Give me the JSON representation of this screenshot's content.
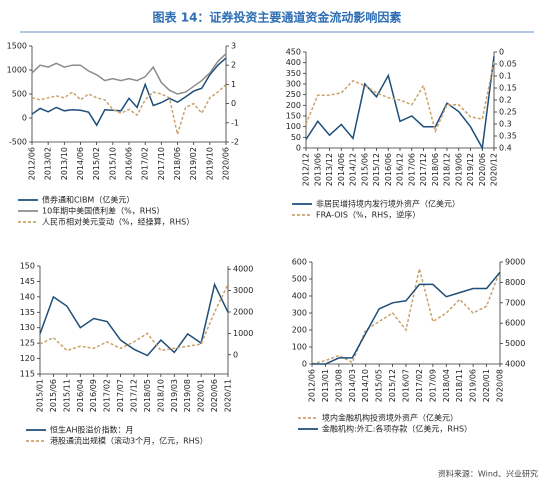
{
  "title": "图表 14：证券投资主要通道资金流动影响因素",
  "source": "资料来源：Wind、兴业研究",
  "chart_data": [
    {
      "type": "line",
      "categories": [
        "2012/06",
        null,
        "2013/02",
        null,
        "2013/10",
        null,
        "2014/06",
        null,
        "2015/02",
        null,
        "2015/10",
        null,
        "2016/06",
        null,
        "2017/02",
        null,
        "2017/10",
        null,
        "2018/06",
        null,
        "2019/02",
        null,
        "2019/10",
        null,
        "2020/06"
      ],
      "ylim": [
        -500,
        1500
      ],
      "yticks": [
        -500,
        0,
        500,
        1000,
        1500
      ],
      "y2lim": [
        -2,
        3
      ],
      "y2ticks": [
        -2,
        -1,
        0,
        1,
        2,
        3
      ],
      "series": [
        {
          "name": "债券通和CIBM（亿美元）",
          "color": "#1f4e79",
          "line_style": "solid",
          "values": [
            80,
            200,
            130,
            220,
            150,
            170,
            160,
            120,
            -150,
            170,
            160,
            150,
            410,
            220,
            700,
            260,
            320,
            410,
            330,
            440,
            560,
            620,
            900,
            1100,
            1250
          ]
        },
        {
          "name": "10年期中美国债利差（%，RHS）",
          "color": "#8c8c8c",
          "line_style": "solid",
          "axis": "y2",
          "values": [
            1.6,
            2.0,
            1.9,
            2.1,
            1.9,
            2.0,
            2.0,
            1.7,
            1.5,
            1.2,
            1.3,
            1.2,
            1.3,
            1.2,
            1.4,
            1.9,
            1.1,
            0.7,
            0.5,
            0.6,
            0.9,
            1.2,
            1.6,
            2.2,
            2.6
          ]
        },
        {
          "name": "人民币相对美元变动（%，经操算，RHS）",
          "color": "#c9a26b",
          "line_style": "dashed",
          "axis": "y2",
          "values": [
            0.3,
            0.2,
            0.3,
            0.4,
            0.3,
            0.6,
            0.2,
            0.5,
            0.3,
            0.2,
            -0.3,
            -0.5,
            -0.3,
            -0.6,
            0.2,
            0.6,
            0.5,
            0.3,
            -1.6,
            -0.2,
            0.0,
            -0.5,
            0.3,
            0.6,
            1.0
          ]
        }
      ]
    },
    {
      "type": "line",
      "categories": [
        "2012/12",
        "2013/06",
        "2013/12",
        "2014/06",
        "2014/12",
        "2015/06",
        "2015/12",
        "2016/06",
        "2016/12",
        "2017/06",
        "2017/12",
        "2018/06",
        "2018/12",
        "2019/06",
        "2019/12",
        "2020/06",
        "2020/12"
      ],
      "ylim": [
        0,
        450
      ],
      "yticks": [
        0,
        50,
        100,
        150,
        200,
        250,
        300,
        350,
        400,
        450
      ],
      "y2lim": [
        0.4,
        0
      ],
      "y2ticks": [
        0,
        0.05,
        0.1,
        0.15,
        0.2,
        0.25,
        0.3,
        0.35,
        0.4
      ],
      "series": [
        {
          "name": "非居民增持境内发行境外资产（亿美元）",
          "color": "#1f4e79",
          "line_style": "solid",
          "values": [
            40,
            125,
            60,
            110,
            45,
            300,
            240,
            340,
            125,
            150,
            100,
            100,
            210,
            170,
            100,
            0,
            430
          ]
        },
        {
          "name": "FRA-OIS（%，RHS，逆序）",
          "color": "#c9a26b",
          "line_style": "dashed",
          "axis": "y2",
          "values": [
            0.3,
            0.18,
            0.18,
            0.17,
            0.12,
            0.14,
            0.17,
            0.19,
            0.2,
            0.22,
            0.14,
            0.33,
            0.22,
            0.22,
            0.27,
            0.28,
            0.04
          ]
        }
      ]
    },
    {
      "type": "line",
      "categories": [
        "2015/01",
        "2015/06",
        "2015/11",
        "2016/04",
        "2016/09",
        "2017/02",
        "2017/07",
        "2017/12",
        "2018/05",
        "2018/10",
        "2019/03",
        "2019/08",
        "2020/01",
        "2020/06",
        "2020/11"
      ],
      "ylim": [
        115,
        150
      ],
      "yticks": [
        115,
        120,
        125,
        130,
        135,
        140,
        145,
        150
      ],
      "y2lim": [
        -900,
        4150
      ],
      "y2ticks": [
        0,
        1000,
        2000,
        3000,
        4000
      ],
      "series": [
        {
          "name": "恒生AH股溢价指数：月",
          "color": "#1f4e79",
          "line_style": "solid",
          "values": [
            128,
            140,
            137,
            130,
            133,
            132,
            126,
            123,
            121,
            126,
            122,
            128,
            125,
            144,
            135
          ]
        },
        {
          "name": "港股通流出规模（滚动3个月，亿元，RHS）",
          "color": "#c9a26b",
          "line_style": "dashed",
          "axis": "y2",
          "values": [
            500,
            800,
            200,
            400,
            300,
            600,
            300,
            600,
            1000,
            200,
            300,
            400,
            500,
            2000,
            3300
          ]
        }
      ]
    },
    {
      "type": "line",
      "categories": [
        "2012/06",
        "2013/01",
        "2013/08",
        "2014/03",
        "2014/10",
        "2015/05",
        "2015/12",
        "2016/07",
        "2017/02",
        "2017/09",
        "2018/04",
        "2018/11",
        "2019/06",
        "2020/01",
        "2020/08"
      ],
      "ylim": [
        0,
        600
      ],
      "yticks": [
        0,
        100,
        200,
        300,
        400,
        500,
        600
      ],
      "y2lim": [
        4000,
        9000
      ],
      "y2ticks": [
        4000,
        5000,
        6000,
        7000,
        8000,
        9000
      ],
      "series": [
        {
          "name": "境内金融机构投资境外资产（亿美元）",
          "color": "#c9a26b",
          "line_style": "dashed",
          "values": [
            0,
            20,
            50,
            10,
            200,
            250,
            300,
            200,
            560,
            250,
            300,
            380,
            300,
            340,
            550
          ]
        },
        {
          "name": "金融机构:外汇:各项存款（亿美元，RHS）",
          "color": "#1f4e79",
          "line_style": "solid",
          "axis": "y2",
          "values": [
            4000,
            4000,
            4300,
            4300,
            5500,
            6700,
            7000,
            7100,
            7900,
            7900,
            7300,
            7500,
            7700,
            7700,
            8500
          ]
        }
      ]
    }
  ]
}
